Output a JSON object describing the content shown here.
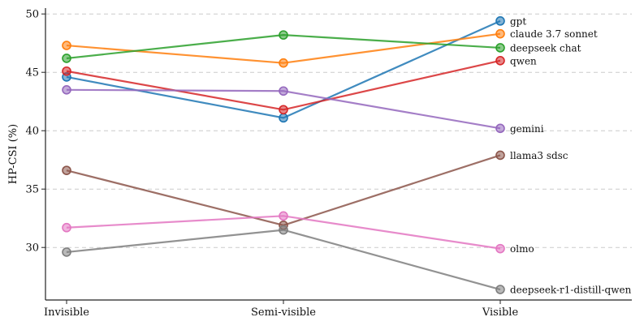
{
  "chart_data": {
    "type": "line",
    "categories": [
      "Invisible",
      "Semi-visible",
      "Visible"
    ],
    "ylabel": "HP-CSI (%)",
    "ylim": [
      25.5,
      50.5
    ],
    "yticks": [
      30,
      35,
      40,
      45,
      50
    ],
    "grid": "y-dashed",
    "legend": "inline-right",
    "series": [
      {
        "name": "gpt",
        "color": "#1f77b4",
        "values": [
          44.6,
          41.1,
          49.4
        ]
      },
      {
        "name": "claude 3.7 sonnet",
        "color": "#ff7f0e",
        "values": [
          47.3,
          45.8,
          48.3
        ]
      },
      {
        "name": "deepseek chat",
        "color": "#2ca02c",
        "values": [
          46.2,
          48.2,
          47.1
        ]
      },
      {
        "name": "qwen",
        "color": "#d62728",
        "values": [
          45.1,
          41.8,
          46.0
        ]
      },
      {
        "name": "gemini",
        "color": "#9467bd",
        "values": [
          43.5,
          43.4,
          40.2
        ]
      },
      {
        "name": "llama3 sdsc",
        "color": "#8c564b",
        "values": [
          36.6,
          31.9,
          37.9
        ]
      },
      {
        "name": "olmo",
        "color": "#e377c2",
        "values": [
          31.7,
          32.7,
          29.9
        ]
      },
      {
        "name": "deepseek-r1-distill-qwen",
        "color": "#7f7f7f",
        "values": [
          29.6,
          31.5,
          26.4
        ]
      }
    ]
  }
}
